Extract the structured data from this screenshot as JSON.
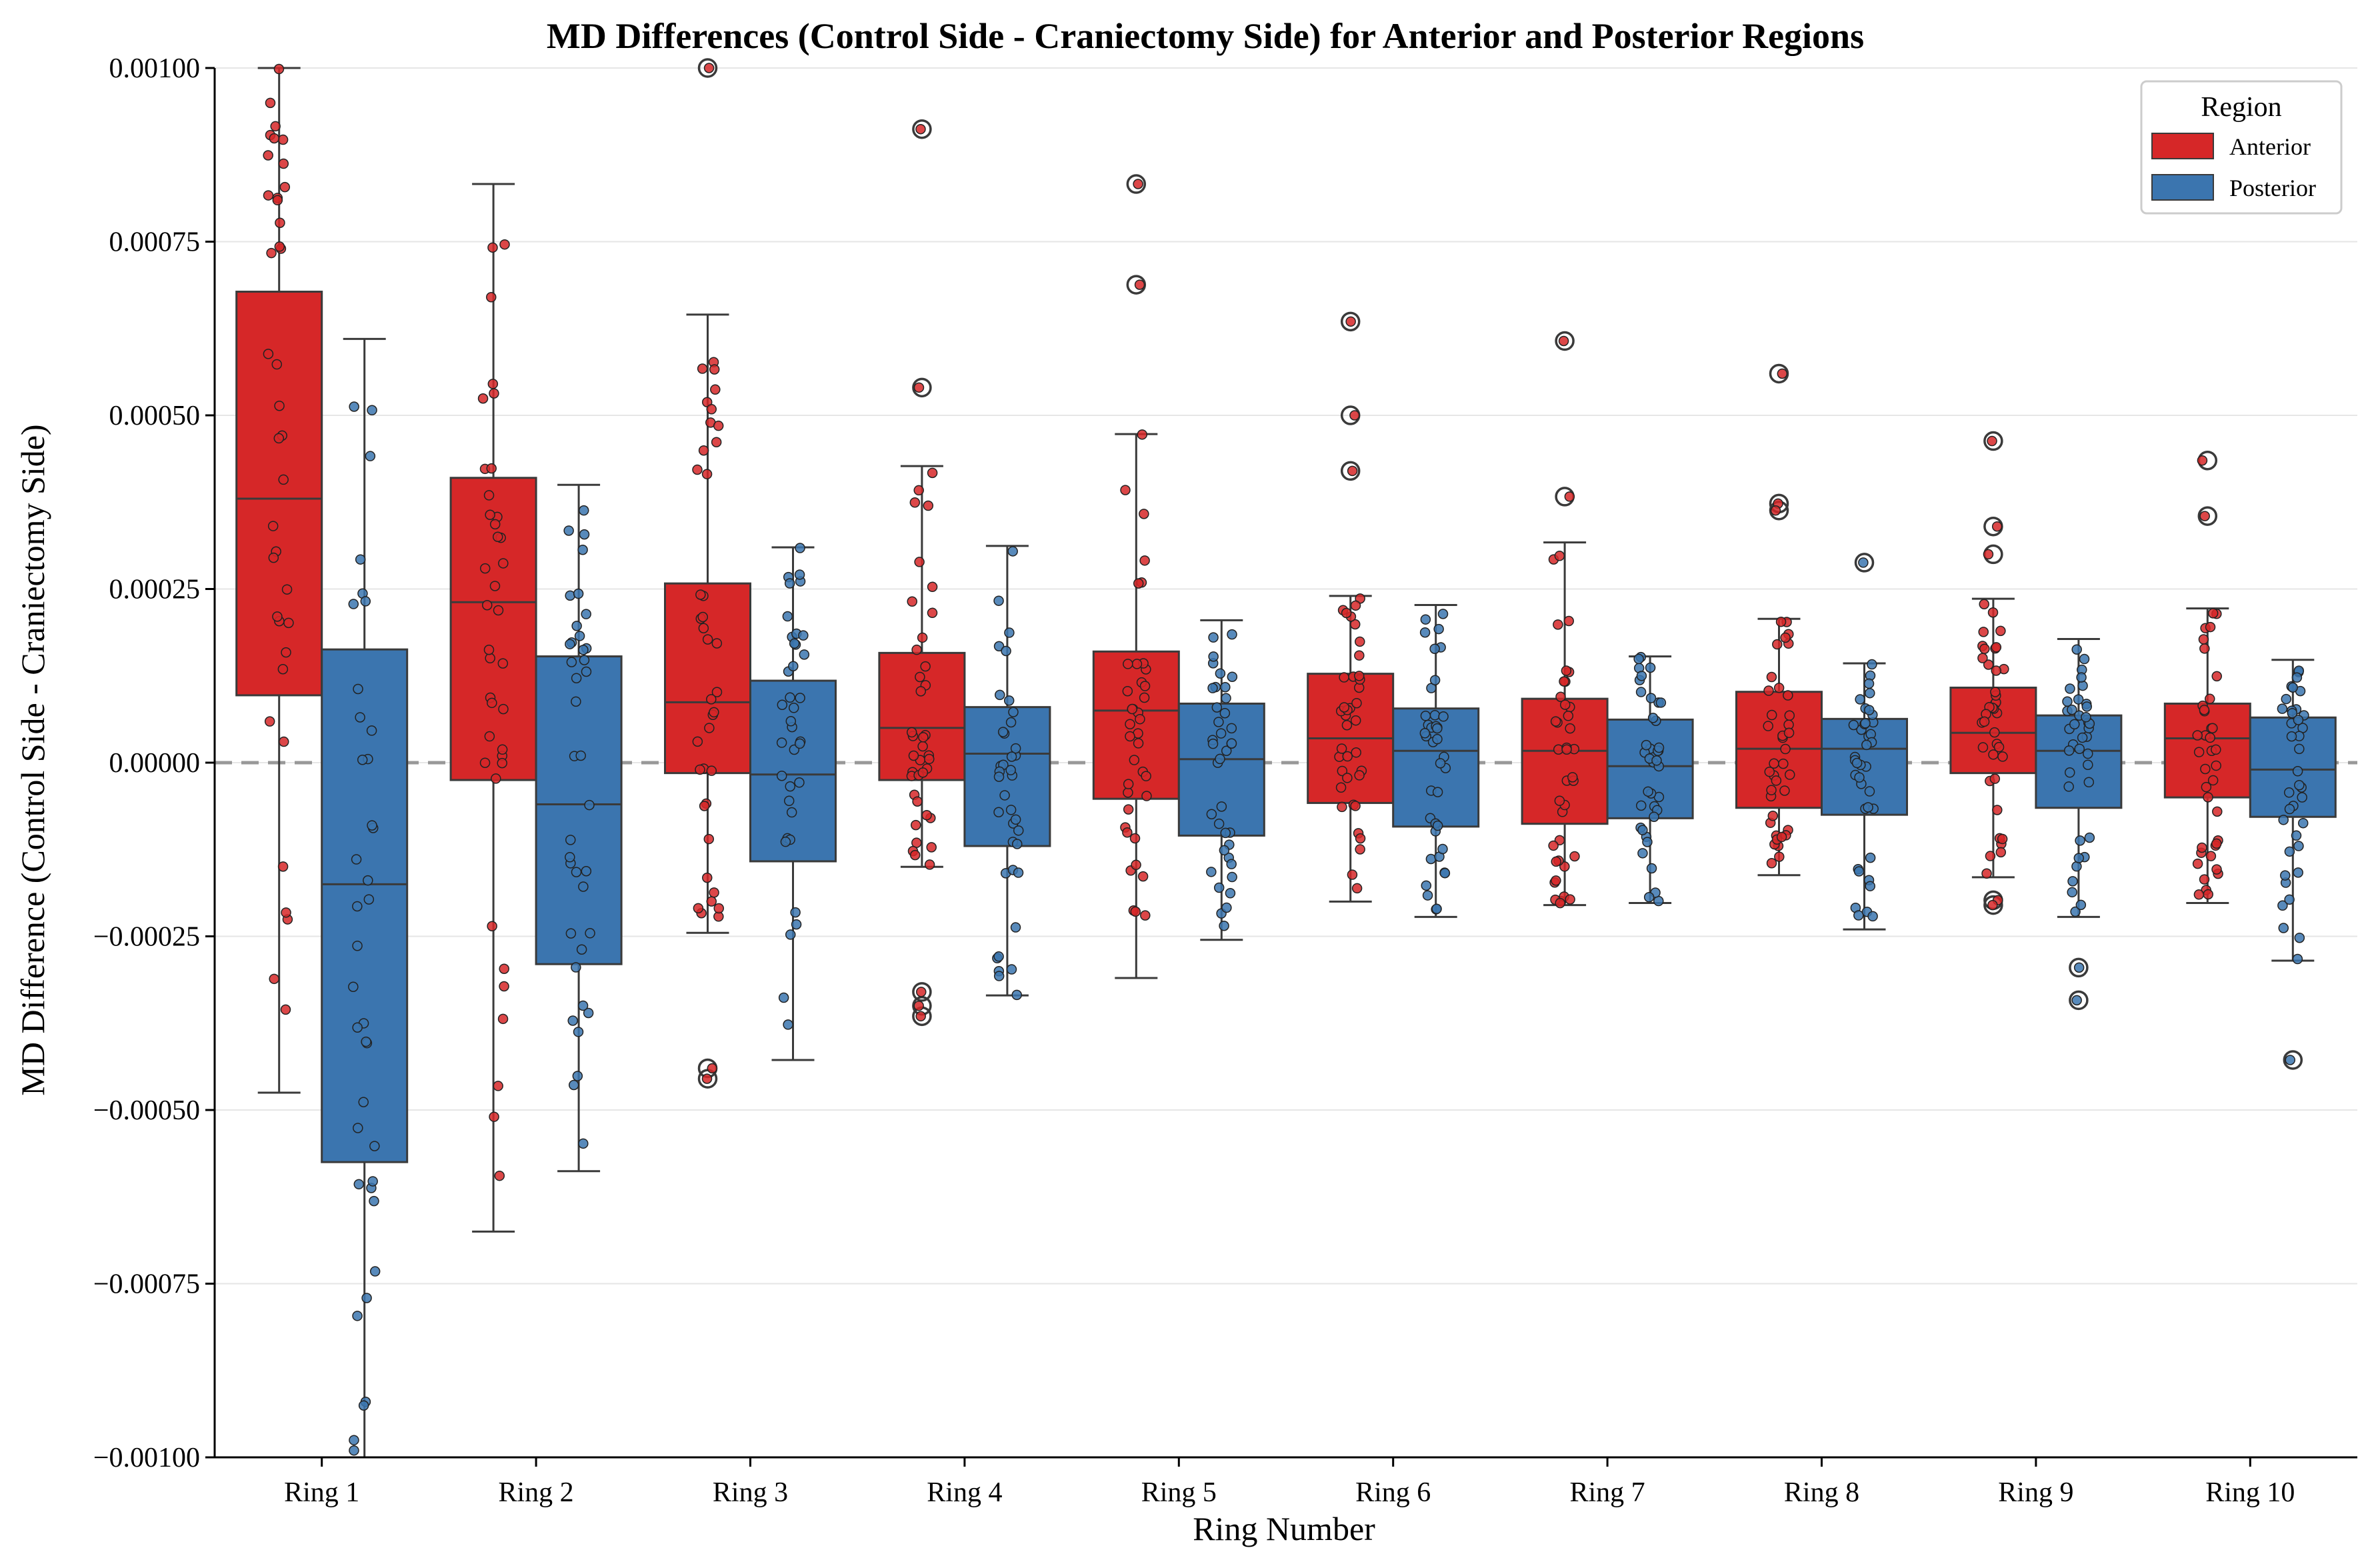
{
  "chart_data": {
    "type": "box",
    "title": "MD Differences (Control Side - Craniectomy Side) for Anterior and Posterior Regions",
    "xlabel": "Ring Number",
    "ylabel": "MD Difference (Control Side - Craniectomy Side)",
    "ylim": [
      -0.001,
      0.001
    ],
    "yticks": [
      -0.001,
      -0.00075,
      -0.0005,
      -0.00025,
      0.0,
      0.00025,
      0.0005,
      0.00075,
      0.001
    ],
    "ytick_labels": [
      "−0.00100",
      "−0.00075",
      "−0.00050",
      "−0.00025",
      "0.00000",
      "0.00025",
      "0.00050",
      "0.00075",
      "0.00100"
    ],
    "categories": [
      "Ring 1",
      "Ring 2",
      "Ring 3",
      "Ring 4",
      "Ring 5",
      "Ring 6",
      "Ring 7",
      "Ring 8",
      "Ring 9",
      "Ring 10"
    ],
    "reference_line": 0.0,
    "grid": "horizontal",
    "legend": {
      "title": "Region",
      "position": "top-right"
    },
    "series": [
      {
        "name": "Anterior",
        "color": "#d62728",
        "boxes": [
          {
            "q1": 9.7e-05,
            "median": 0.00038,
            "q3": 0.000678,
            "whisker_low": -0.000475,
            "whisker_high": 0.001,
            "outliers": []
          },
          {
            "q1": -2.5e-05,
            "median": 0.000231,
            "q3": 0.00041,
            "whisker_low": -0.000675,
            "whisker_high": 0.000833,
            "outliers": []
          },
          {
            "q1": -1.5e-05,
            "median": 8.7e-05,
            "q3": 0.000258,
            "whisker_low": -0.000245,
            "whisker_high": 0.000645,
            "outliers": [
              -0.00044,
              -0.000455,
              0.001
            ]
          },
          {
            "q1": -2.5e-05,
            "median": 5e-05,
            "q3": 0.000158,
            "whisker_low": -0.00015,
            "whisker_high": 0.000427,
            "outliers": [
              0.000912,
              0.00054,
              -0.00033,
              -0.00035,
              -0.000365
            ]
          },
          {
            "q1": -5.2e-05,
            "median": 7.5e-05,
            "q3": 0.00016,
            "whisker_low": -0.00031,
            "whisker_high": 0.000473,
            "outliers": [
              0.000833,
              0.000688
            ]
          },
          {
            "q1": -5.8e-05,
            "median": 3.5e-05,
            "q3": 0.000128,
            "whisker_low": -0.0002,
            "whisker_high": 0.00024,
            "outliers": [
              0.000635,
              0.0005,
              0.00042
            ]
          },
          {
            "q1": -8.8e-05,
            "median": 1.7e-05,
            "q3": 9.2e-05,
            "whisker_low": -0.000205,
            "whisker_high": 0.000317,
            "outliers": [
              0.000607,
              0.000383
            ]
          },
          {
            "q1": -6.5e-05,
            "median": 2e-05,
            "q3": 0.000102,
            "whisker_low": -0.000162,
            "whisker_high": 0.000207,
            "outliers": [
              0.00056,
              0.000373,
              0.000363
            ]
          },
          {
            "q1": -1.5e-05,
            "median": 4.3e-05,
            "q3": 0.000108,
            "whisker_low": -0.000165,
            "whisker_high": 0.000236,
            "outliers": [
              0.000463,
              0.00034,
              0.0003,
              -0.000198,
              -0.000205
            ]
          },
          {
            "q1": -5e-05,
            "median": 3.5e-05,
            "q3": 8.5e-05,
            "whisker_low": -0.000202,
            "whisker_high": 0.000222,
            "outliers": [
              0.000435,
              0.000355
            ]
          }
        ]
      },
      {
        "name": "Posterior",
        "color": "#3b75af",
        "boxes": [
          {
            "q1": -0.000575,
            "median": -0.000175,
            "q3": 0.000163,
            "whisker_low": -0.001,
            "whisker_high": 0.00061,
            "outliers": []
          },
          {
            "q1": -0.00029,
            "median": -6e-05,
            "q3": 0.000153,
            "whisker_low": -0.000588,
            "whisker_high": 0.0004,
            "outliers": []
          },
          {
            "q1": -0.000142,
            "median": -1.7e-05,
            "q3": 0.000118,
            "whisker_low": -0.000428,
            "whisker_high": 0.00031,
            "outliers": []
          },
          {
            "q1": -0.00012,
            "median": 1.3e-05,
            "q3": 8e-05,
            "whisker_low": -0.000335,
            "whisker_high": 0.000312,
            "outliers": []
          },
          {
            "q1": -0.000105,
            "median": 5e-06,
            "q3": 8.5e-05,
            "whisker_low": -0.000255,
            "whisker_high": 0.000205,
            "outliers": []
          },
          {
            "q1": -9.2e-05,
            "median": 1.7e-05,
            "q3": 7.8e-05,
            "whisker_low": -0.000222,
            "whisker_high": 0.000227,
            "outliers": []
          },
          {
            "q1": -8e-05,
            "median": -5e-06,
            "q3": 6.2e-05,
            "whisker_low": -0.000202,
            "whisker_high": 0.000153,
            "outliers": []
          },
          {
            "q1": -7.5e-05,
            "median": 2e-05,
            "q3": 6.3e-05,
            "whisker_low": -0.00024,
            "whisker_high": 0.000143,
            "outliers": [
              0.000288
            ]
          },
          {
            "q1": -6.5e-05,
            "median": 1.7e-05,
            "q3": 6.8e-05,
            "whisker_low": -0.000222,
            "whisker_high": 0.000178,
            "outliers": [
              -0.000295,
              -0.000342
            ]
          },
          {
            "q1": -7.8e-05,
            "median": -1e-05,
            "q3": 6.5e-05,
            "whisker_low": -0.000285,
            "whisker_high": 0.000148,
            "outliers": [
              -0.000428
            ]
          }
        ]
      }
    ]
  }
}
